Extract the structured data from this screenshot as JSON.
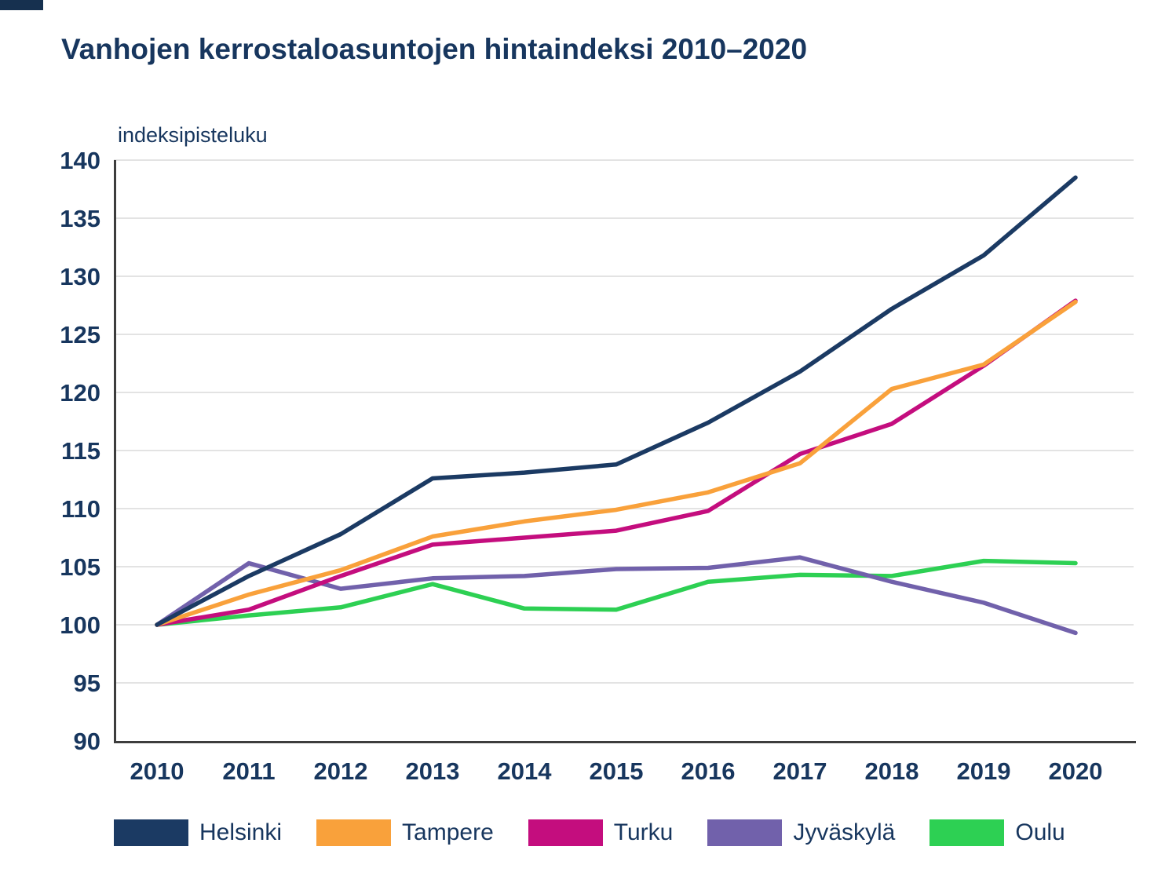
{
  "page": {
    "background": "#ffffff",
    "topbar_color": "#16304f",
    "text_color": "#17365e"
  },
  "colors": {
    "axis_line": "#3d3d3d",
    "gridline": "#e3e3e3",
    "tick_label": "#17365e"
  },
  "chart_data": {
    "type": "line",
    "title": "Vanhojen kerrostaloasuntojen hintaindeksi 2010–2020",
    "ylabel": "indeksipisteluku",
    "xlabel": "",
    "x": [
      2010,
      2011,
      2012,
      2013,
      2014,
      2015,
      2016,
      2017,
      2018,
      2019,
      2020
    ],
    "ylim": [
      90,
      140
    ],
    "yticks": [
      90,
      95,
      100,
      105,
      110,
      115,
      120,
      125,
      130,
      135,
      140
    ],
    "grid": "horizontal",
    "legend_position": "bottom",
    "series": [
      {
        "name": "Helsinki",
        "color": "#1b3a63",
        "values": [
          100,
          104.2,
          107.8,
          112.6,
          113.1,
          113.8,
          117.4,
          121.8,
          127.2,
          131.8,
          138.5
        ]
      },
      {
        "name": "Tampere",
        "color": "#f9a13b",
        "values": [
          100,
          102.6,
          104.7,
          107.6,
          108.9,
          109.9,
          111.4,
          113.9,
          120.3,
          122.4,
          127.8
        ]
      },
      {
        "name": "Turku",
        "color": "#c40d7e",
        "values": [
          100,
          101.3,
          104.2,
          106.9,
          107.5,
          108.1,
          109.8,
          114.7,
          117.3,
          122.3,
          127.9
        ]
      },
      {
        "name": "Jyväskylä",
        "color": "#7161ab",
        "values": [
          100,
          105.3,
          103.1,
          104.0,
          104.2,
          104.8,
          104.9,
          105.8,
          103.7,
          101.9,
          99.3
        ]
      },
      {
        "name": "Oulu",
        "color": "#2dd053",
        "values": [
          100,
          100.8,
          101.5,
          103.5,
          101.4,
          101.3,
          103.7,
          104.3,
          104.2,
          105.5,
          105.3
        ]
      }
    ]
  }
}
